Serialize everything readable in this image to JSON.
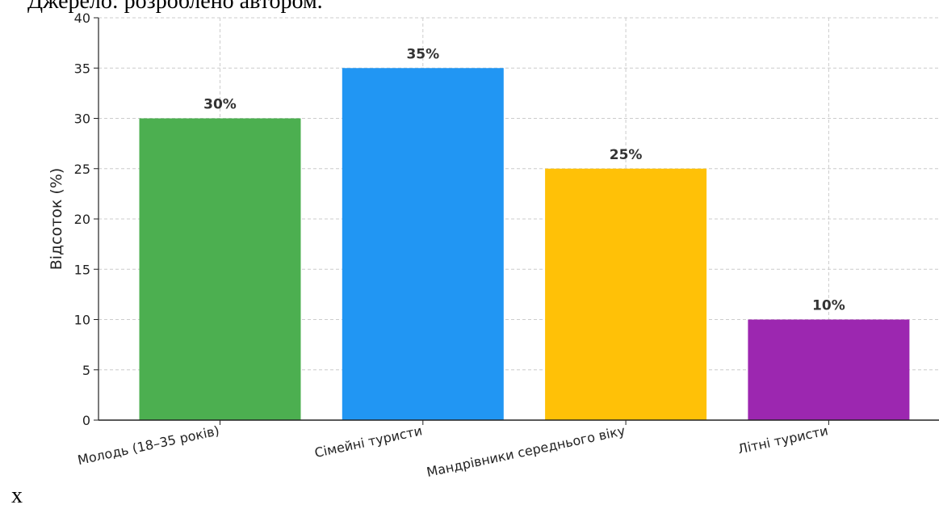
{
  "page": {
    "caption": "Джерело: розроблено автором.",
    "stray_text": "x"
  },
  "chart_data": {
    "type": "bar",
    "ylabel": "Відсоток (%)",
    "xlabel": "",
    "ylim": [
      0,
      40
    ],
    "yticks": [
      0,
      5,
      10,
      15,
      20,
      25,
      30,
      35,
      40
    ],
    "grid": true,
    "categories": [
      "Молодь (18–35 років)",
      "Сімейні туристи",
      "Мандрівники середнього віку",
      "Літні туристи"
    ],
    "values": [
      30,
      35,
      25,
      10
    ],
    "value_labels": [
      "30%",
      "35%",
      "25%",
      "10%"
    ],
    "colors": [
      "#4caf50",
      "#2196f3",
      "#ffc107",
      "#9c27b0"
    ]
  }
}
